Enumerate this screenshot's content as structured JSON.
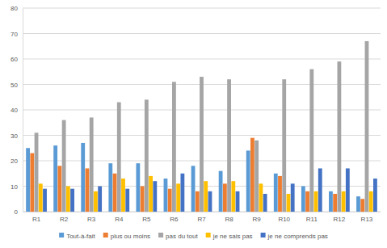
{
  "chart_data": {
    "type": "bar",
    "categories": [
      "R1",
      "R2",
      "R3",
      "R4",
      "R5",
      "R6",
      "R7",
      "R8",
      "R9",
      "R10",
      "R11",
      "R12",
      "R13"
    ],
    "series": [
      {
        "name": "Tout-à-fait",
        "color": "#5b9bd5",
        "values": [
          25,
          26,
          27,
          19,
          19,
          13,
          18,
          16,
          24,
          15,
          10,
          8,
          6
        ]
      },
      {
        "name": "plus ou moins",
        "color": "#ed7d31",
        "values": [
          23,
          18,
          17,
          15,
          10,
          9,
          8,
          11,
          29,
          14,
          8,
          7,
          5
        ]
      },
      {
        "name": "pas du tout",
        "color": "#a5a5a5",
        "values": [
          31,
          36,
          37,
          43,
          44,
          51,
          53,
          52,
          28,
          52,
          56,
          59,
          67
        ]
      },
      {
        "name": "je ne sais pas",
        "color": "#ffc000",
        "values": [
          11,
          10,
          8,
          13,
          14,
          11,
          12,
          12,
          11,
          7,
          8,
          8,
          8
        ]
      },
      {
        "name": "je ne comprends pas",
        "color": "#4472c4",
        "values": [
          9,
          9,
          10,
          9,
          12,
          15,
          8,
          8,
          7,
          11,
          17,
          17,
          13
        ]
      }
    ],
    "ylim": [
      0,
      80
    ],
    "yticks": [
      0,
      10,
      20,
      30,
      40,
      50,
      60,
      70,
      80
    ],
    "grid": true,
    "legend": "bottom"
  }
}
